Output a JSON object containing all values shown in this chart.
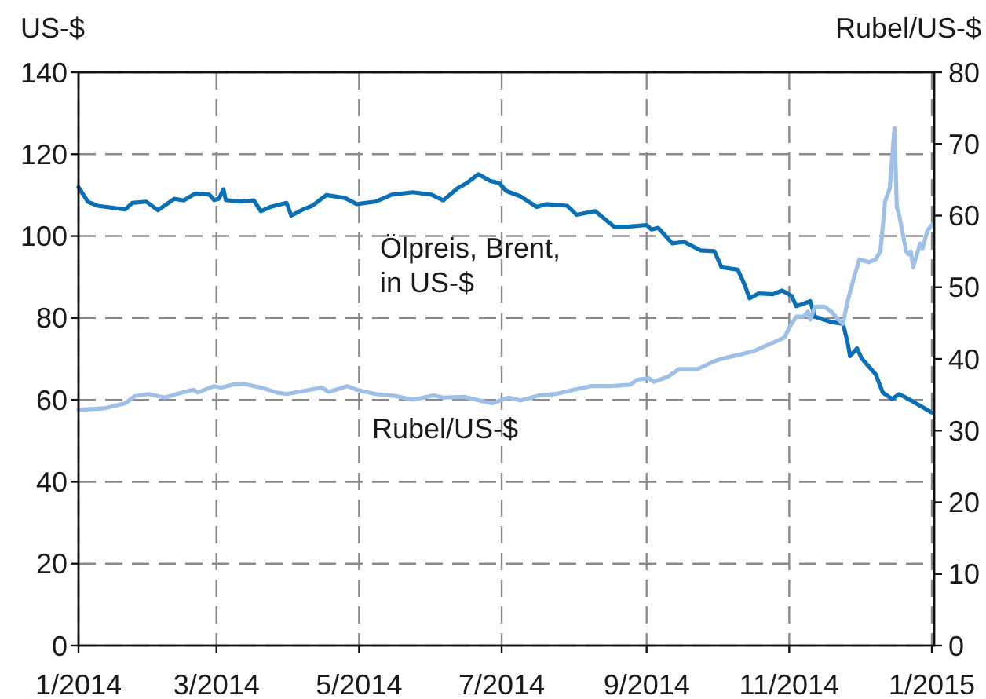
{
  "chart_data": {
    "type": "line",
    "ylabel": "US-$",
    "y2label": "Rubel/US-$",
    "xlim": [
      "2014-01-01",
      "2015-01-02"
    ],
    "xticks": [
      {
        "value": "2014-01-01",
        "label": "1/2014"
      },
      {
        "value": "2014-03-01",
        "label": "3/2014"
      },
      {
        "value": "2014-05-01",
        "label": "5/2014"
      },
      {
        "value": "2014-07-01",
        "label": "7/2014"
      },
      {
        "value": "2014-09-01",
        "label": "9/2014"
      },
      {
        "value": "2014-11-01",
        "label": "11/2014"
      },
      {
        "value": "2015-01-01",
        "label": "1/2015"
      }
    ],
    "ylim": [
      0,
      140
    ],
    "yticks": [
      0,
      20,
      40,
      60,
      80,
      100,
      120,
      140
    ],
    "y2lim": [
      0,
      80
    ],
    "y2ticks": [
      0,
      10,
      20,
      30,
      40,
      50,
      60,
      70,
      80
    ],
    "grid": true,
    "series": [
      {
        "name": "Ölpreis, Brent, in US-$",
        "color": "#0a70b5",
        "x": [
          "2014-01-01",
          "2014-01-05",
          "2014-01-09",
          "2014-01-21",
          "2014-01-24",
          "2014-01-30",
          "2014-02-04",
          "2014-02-11",
          "2014-02-15",
          "2014-02-20",
          "2014-02-26",
          "2014-02-28",
          "2014-03-02",
          "2014-03-04",
          "2014-03-05",
          "2014-03-11",
          "2014-03-17",
          "2014-03-20",
          "2014-03-24",
          "2014-03-31",
          "2014-04-02",
          "2014-04-07",
          "2014-04-11",
          "2014-04-17",
          "2014-04-25",
          "2014-04-30",
          "2014-05-08",
          "2014-05-15",
          "2014-05-24",
          "2014-06-01",
          "2014-06-06",
          "2014-06-12",
          "2014-06-16",
          "2014-06-21",
          "2014-06-26",
          "2014-06-30",
          "2014-07-03",
          "2014-07-09",
          "2014-07-16",
          "2014-07-20",
          "2014-07-29",
          "2014-08-02",
          "2014-08-10",
          "2014-08-18",
          "2014-08-24",
          "2014-09-01",
          "2014-09-03",
          "2014-09-06",
          "2014-09-12",
          "2014-09-17",
          "2014-09-24",
          "2014-09-30",
          "2014-10-03",
          "2014-10-10",
          "2014-10-13",
          "2014-10-15",
          "2014-10-19",
          "2014-10-25",
          "2014-10-29",
          "2014-11-02",
          "2014-11-04",
          "2014-11-10",
          "2014-11-12",
          "2014-11-19",
          "2014-11-24",
          "2014-11-26",
          "2014-11-27",
          "2014-11-30",
          "2014-12-02",
          "2014-12-08",
          "2014-12-11",
          "2014-12-15",
          "2014-12-18",
          "2014-12-21",
          "2014-12-25",
          "2015-01-01"
        ],
        "values": [
          111.9,
          108.4,
          107.4,
          106.5,
          108.1,
          108.4,
          106.3,
          109.1,
          108.7,
          110.4,
          110.1,
          108.8,
          109.1,
          111.4,
          108.8,
          108.4,
          108.7,
          106.1,
          107.1,
          108.1,
          105.0,
          106.5,
          107.4,
          110.0,
          109.3,
          107.8,
          108.4,
          110.1,
          110.7,
          110.1,
          108.7,
          111.6,
          112.9,
          115.1,
          113.5,
          112.9,
          111.0,
          109.7,
          107.1,
          107.8,
          107.4,
          105.2,
          106.1,
          102.3,
          102.3,
          102.7,
          101.6,
          102.0,
          98.2,
          98.6,
          96.5,
          96.3,
          92.4,
          91.8,
          88.0,
          84.8,
          86.0,
          85.8,
          86.7,
          85.4,
          82.9,
          84.1,
          80.3,
          79.0,
          78.6,
          73.9,
          70.7,
          72.6,
          70.1,
          66.2,
          61.8,
          60.2,
          61.4,
          60.5,
          59.2,
          56.9
        ]
      },
      {
        "name": "Rubel/US-$",
        "color": "#9ec0e8",
        "axis": "y2",
        "x": [
          "2014-01-01",
          "2014-01-12",
          "2014-01-21",
          "2014-01-25",
          "2014-01-31",
          "2014-02-07",
          "2014-02-12",
          "2014-02-19",
          "2014-02-21",
          "2014-02-28",
          "2014-03-03",
          "2014-03-08",
          "2014-03-13",
          "2014-03-20",
          "2014-03-27",
          "2014-03-31",
          "2014-04-07",
          "2014-04-15",
          "2014-04-18",
          "2014-04-26",
          "2014-04-30",
          "2014-05-08",
          "2014-05-17",
          "2014-05-24",
          "2014-06-02",
          "2014-06-06",
          "2014-06-15",
          "2014-06-24",
          "2014-06-27",
          "2014-07-04",
          "2014-07-09",
          "2014-07-17",
          "2014-07-24",
          "2014-08-01",
          "2014-08-08",
          "2014-08-17",
          "2014-08-25",
          "2014-08-28",
          "2014-09-02",
          "2014-09-04",
          "2014-09-10",
          "2014-09-15",
          "2014-09-23",
          "2014-09-30",
          "2014-10-03",
          "2014-10-08",
          "2014-10-17",
          "2014-10-21",
          "2014-10-28",
          "2014-10-30",
          "2014-11-01",
          "2014-11-04",
          "2014-11-07",
          "2014-11-09",
          "2014-11-10",
          "2014-11-12",
          "2014-11-16",
          "2014-11-19",
          "2014-11-22",
          "2014-11-24",
          "2014-11-26",
          "2014-11-29",
          "2014-12-01",
          "2014-12-05",
          "2014-12-08",
          "2014-12-10",
          "2014-12-12",
          "2014-12-14",
          "2014-12-16",
          "2014-12-17",
          "2014-12-18",
          "2014-12-21",
          "2014-12-22",
          "2014-12-23",
          "2014-12-24",
          "2014-12-26",
          "2014-12-27",
          "2014-12-28",
          "2014-12-30",
          "2015-01-01"
        ],
        "values": [
          32.9,
          33.1,
          33.8,
          34.8,
          35.1,
          34.6,
          35.1,
          35.7,
          35.3,
          36.2,
          36.0,
          36.4,
          36.5,
          36.0,
          35.3,
          35.1,
          35.5,
          36.0,
          35.4,
          36.2,
          35.7,
          35.1,
          34.8,
          34.3,
          34.9,
          34.6,
          34.7,
          34.0,
          33.8,
          34.6,
          34.2,
          34.9,
          35.1,
          35.7,
          36.2,
          36.2,
          36.4,
          37.1,
          37.3,
          36.8,
          37.5,
          38.6,
          38.6,
          39.7,
          40.0,
          40.4,
          41.1,
          41.7,
          42.7,
          43.0,
          44.4,
          45.9,
          45.9,
          46.6,
          45.5,
          47.3,
          47.3,
          46.6,
          45.5,
          44.9,
          48.1,
          51.7,
          53.9,
          53.5,
          53.9,
          55.0,
          62.0,
          63.8,
          72.2,
          61.2,
          60.1,
          55.0,
          54.6,
          55.0,
          52.8,
          55.0,
          56.1,
          55.4,
          57.8,
          58.7
        ]
      }
    ]
  }
}
